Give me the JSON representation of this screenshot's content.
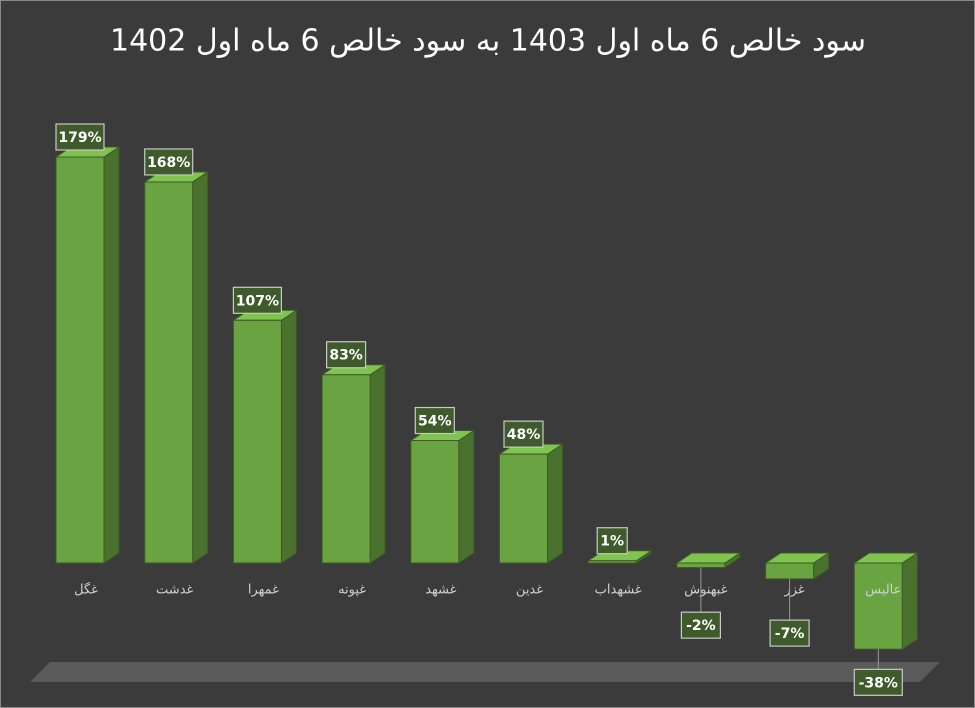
{
  "chart_data": {
    "type": "bar3d",
    "title": "سود خالص 6 ماه اول 1403 به سود خالص 6 ماه اول 1402",
    "categories": [
      "غگل",
      "غدشت",
      "غمهرا",
      "غپونه",
      "غشهد",
      "غدین",
      "غشهداب",
      "غبهنوش",
      "غزر",
      "عالیس"
    ],
    "values": [
      179,
      168,
      107,
      83,
      54,
      48,
      1,
      -2,
      -7,
      -38
    ],
    "value_labels": [
      "179%",
      "168%",
      "107%",
      "83%",
      "54%",
      "48%",
      "1%",
      "-2%",
      "-7%",
      "-38%"
    ],
    "color": "#6aa341"
  }
}
